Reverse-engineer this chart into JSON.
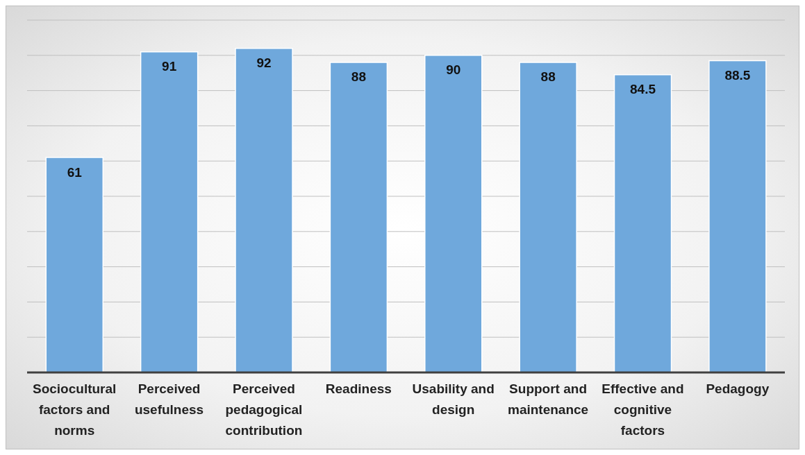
{
  "chart_data": {
    "type": "bar",
    "categories": [
      "Sociocultural factors and norms",
      "Perceived usefulness",
      "Perceived pedagogical contribution",
      "Readiness",
      "Usability and design",
      "Support and maintenance",
      "Effective and cognitive factors",
      "Pedagogy"
    ],
    "values": [
      61,
      91,
      92,
      88,
      90,
      88,
      84.5,
      88.5
    ],
    "color": "#6fa8dc",
    "data_labels": true,
    "ylim": [
      0,
      100
    ],
    "tick_labels": "x",
    "grid": "y"
  }
}
